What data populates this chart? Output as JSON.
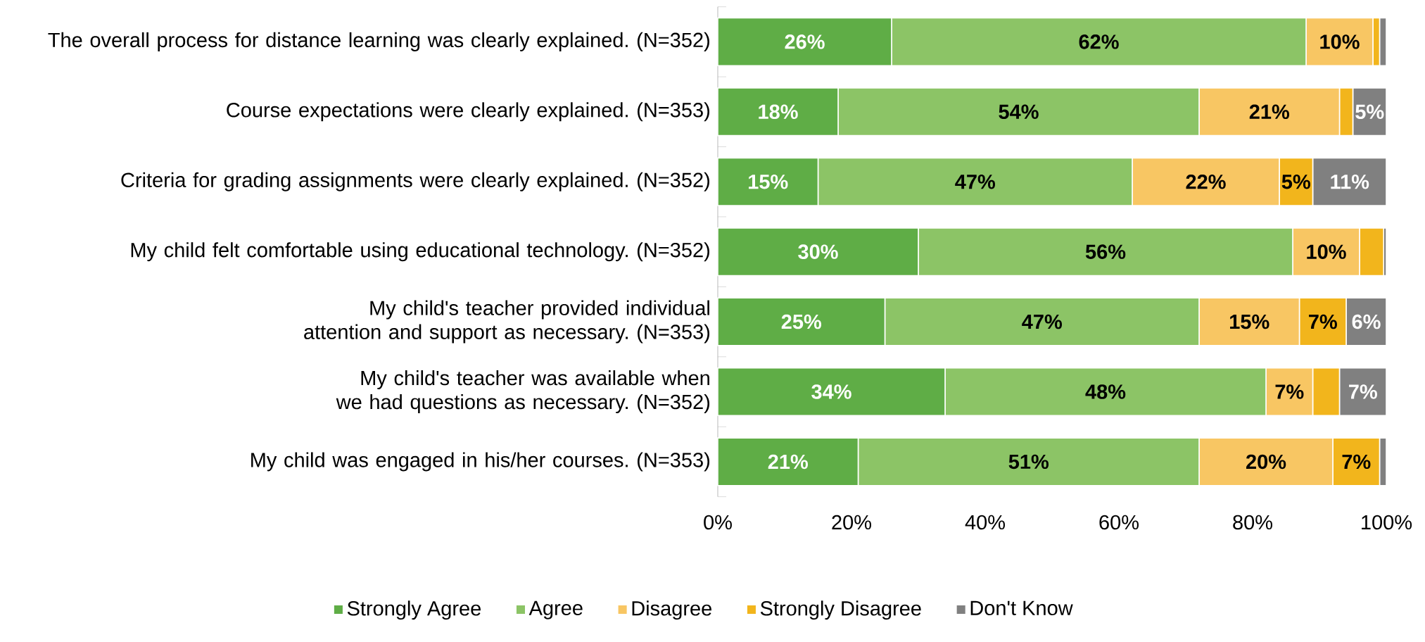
{
  "chart_data": {
    "type": "bar",
    "orientation": "horizontal",
    "stacked": true,
    "legend": "bottom",
    "categories": [
      "The overall process for distance learning was clearly explained. (N=352)",
      "Course expectations were clearly explained. (N=353)",
      "Criteria for grading assignments were clearly explained. (N=352)",
      "My child felt comfortable using educational technology. (N=352)",
      "My child's teacher provided individual attention and support as necessary. (N=353)",
      "My child's teacher was available when we had questions as necessary. (N=352)",
      "My child was engaged in his/her courses. (N=353)"
    ],
    "series": [
      {
        "name": "Strongly Agree",
        "color": "#5fad46",
        "values": [
          26,
          18,
          15,
          30,
          25,
          34,
          21
        ],
        "value_labels": [
          "26%",
          "18%",
          "15%",
          "30%",
          "25%",
          "34%",
          "21%"
        ]
      },
      {
        "name": "Agree",
        "color": "#8cc466",
        "values": [
          62,
          54,
          47,
          56,
          47,
          48,
          51
        ],
        "value_labels": [
          "62%",
          "54%",
          "47%",
          "56%",
          "47%",
          "48%",
          "51%"
        ]
      },
      {
        "name": "Disagree",
        "color": "#f8c663",
        "values": [
          10,
          21,
          22,
          10,
          15,
          7,
          20
        ],
        "value_labels": [
          "10%",
          "21%",
          "22%",
          "10%",
          "15%",
          "7%",
          "20%"
        ]
      },
      {
        "name": "Strongly Disagree",
        "color": "#f2b51c",
        "values": [
          1,
          2,
          5,
          3.6,
          7,
          4,
          7
        ],
        "value_labels": [
          null,
          null,
          "5%",
          null,
          "7%",
          null,
          "7%"
        ]
      },
      {
        "name": "Don't Know",
        "color": "#808080",
        "values": [
          1,
          5,
          11,
          0.4,
          6,
          7,
          1
        ],
        "value_labels": [
          null,
          "5%",
          "11%",
          null,
          "6%",
          "7%",
          null
        ]
      }
    ],
    "xlim": [
      0,
      100
    ],
    "xticks": [
      {
        "value": 0,
        "label": "0%"
      },
      {
        "value": 20,
        "label": "20%"
      },
      {
        "value": 40,
        "label": "40%"
      },
      {
        "value": 60,
        "label": "60%"
      },
      {
        "value": 80,
        "label": "80%"
      },
      {
        "value": 100,
        "label": "100%"
      }
    ]
  }
}
